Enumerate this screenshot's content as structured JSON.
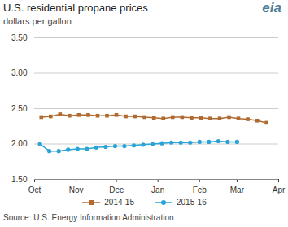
{
  "chart_data": {
    "type": "line",
    "title": "U.S. residential propane prices",
    "subtitle": "dollars per gallon",
    "source": "Source: U.S. Energy Information Administration",
    "logo": "eia",
    "xlim": [
      0,
      182
    ],
    "xticks": [
      {
        "value": 0,
        "label": "Oct"
      },
      {
        "value": 31,
        "label": "Nov"
      },
      {
        "value": 61,
        "label": "Dec"
      },
      {
        "value": 92,
        "label": "Jan"
      },
      {
        "value": 123,
        "label": "Feb"
      },
      {
        "value": 151,
        "label": "Mar"
      },
      {
        "value": 182,
        "label": "Apr"
      }
    ],
    "ylim": [
      1.5,
      3.5
    ],
    "yticks": [
      {
        "value": 1.5,
        "label": "1.50"
      },
      {
        "value": 2,
        "label": "2.00"
      },
      {
        "value": 2.5,
        "label": "2.50"
      },
      {
        "value": 3,
        "label": "3.00"
      },
      {
        "value": 3.5,
        "label": "3.50"
      }
    ],
    "grid": true,
    "legend": "bottom",
    "series": [
      {
        "name": "2014-15",
        "color": "#b06a30",
        "marker": "square",
        "x": [
          5,
          12,
          19,
          26,
          33,
          40,
          47,
          54,
          61,
          68,
          75,
          82,
          89,
          96,
          103,
          110,
          117,
          124,
          131,
          138,
          145,
          152,
          159,
          166,
          173
        ],
        "values": [
          2.38,
          2.39,
          2.42,
          2.4,
          2.41,
          2.41,
          2.4,
          2.4,
          2.41,
          2.39,
          2.39,
          2.38,
          2.37,
          2.36,
          2.38,
          2.38,
          2.37,
          2.37,
          2.36,
          2.36,
          2.38,
          2.36,
          2.35,
          2.33,
          2.3
        ]
      },
      {
        "name": "2015-16",
        "color": "#2aa3d6",
        "marker": "circle",
        "x": [
          4,
          11,
          18,
          25,
          32,
          39,
          46,
          53,
          60,
          67,
          74,
          81,
          88,
          95,
          102,
          109,
          116,
          123,
          130,
          137,
          144,
          151
        ],
        "values": [
          2.0,
          1.9,
          1.9,
          1.92,
          1.93,
          1.93,
          1.95,
          1.96,
          1.97,
          1.97,
          1.98,
          1.99,
          2.0,
          2.01,
          2.02,
          2.02,
          2.02,
          2.03,
          2.03,
          2.04,
          2.03,
          2.03
        ]
      }
    ]
  }
}
